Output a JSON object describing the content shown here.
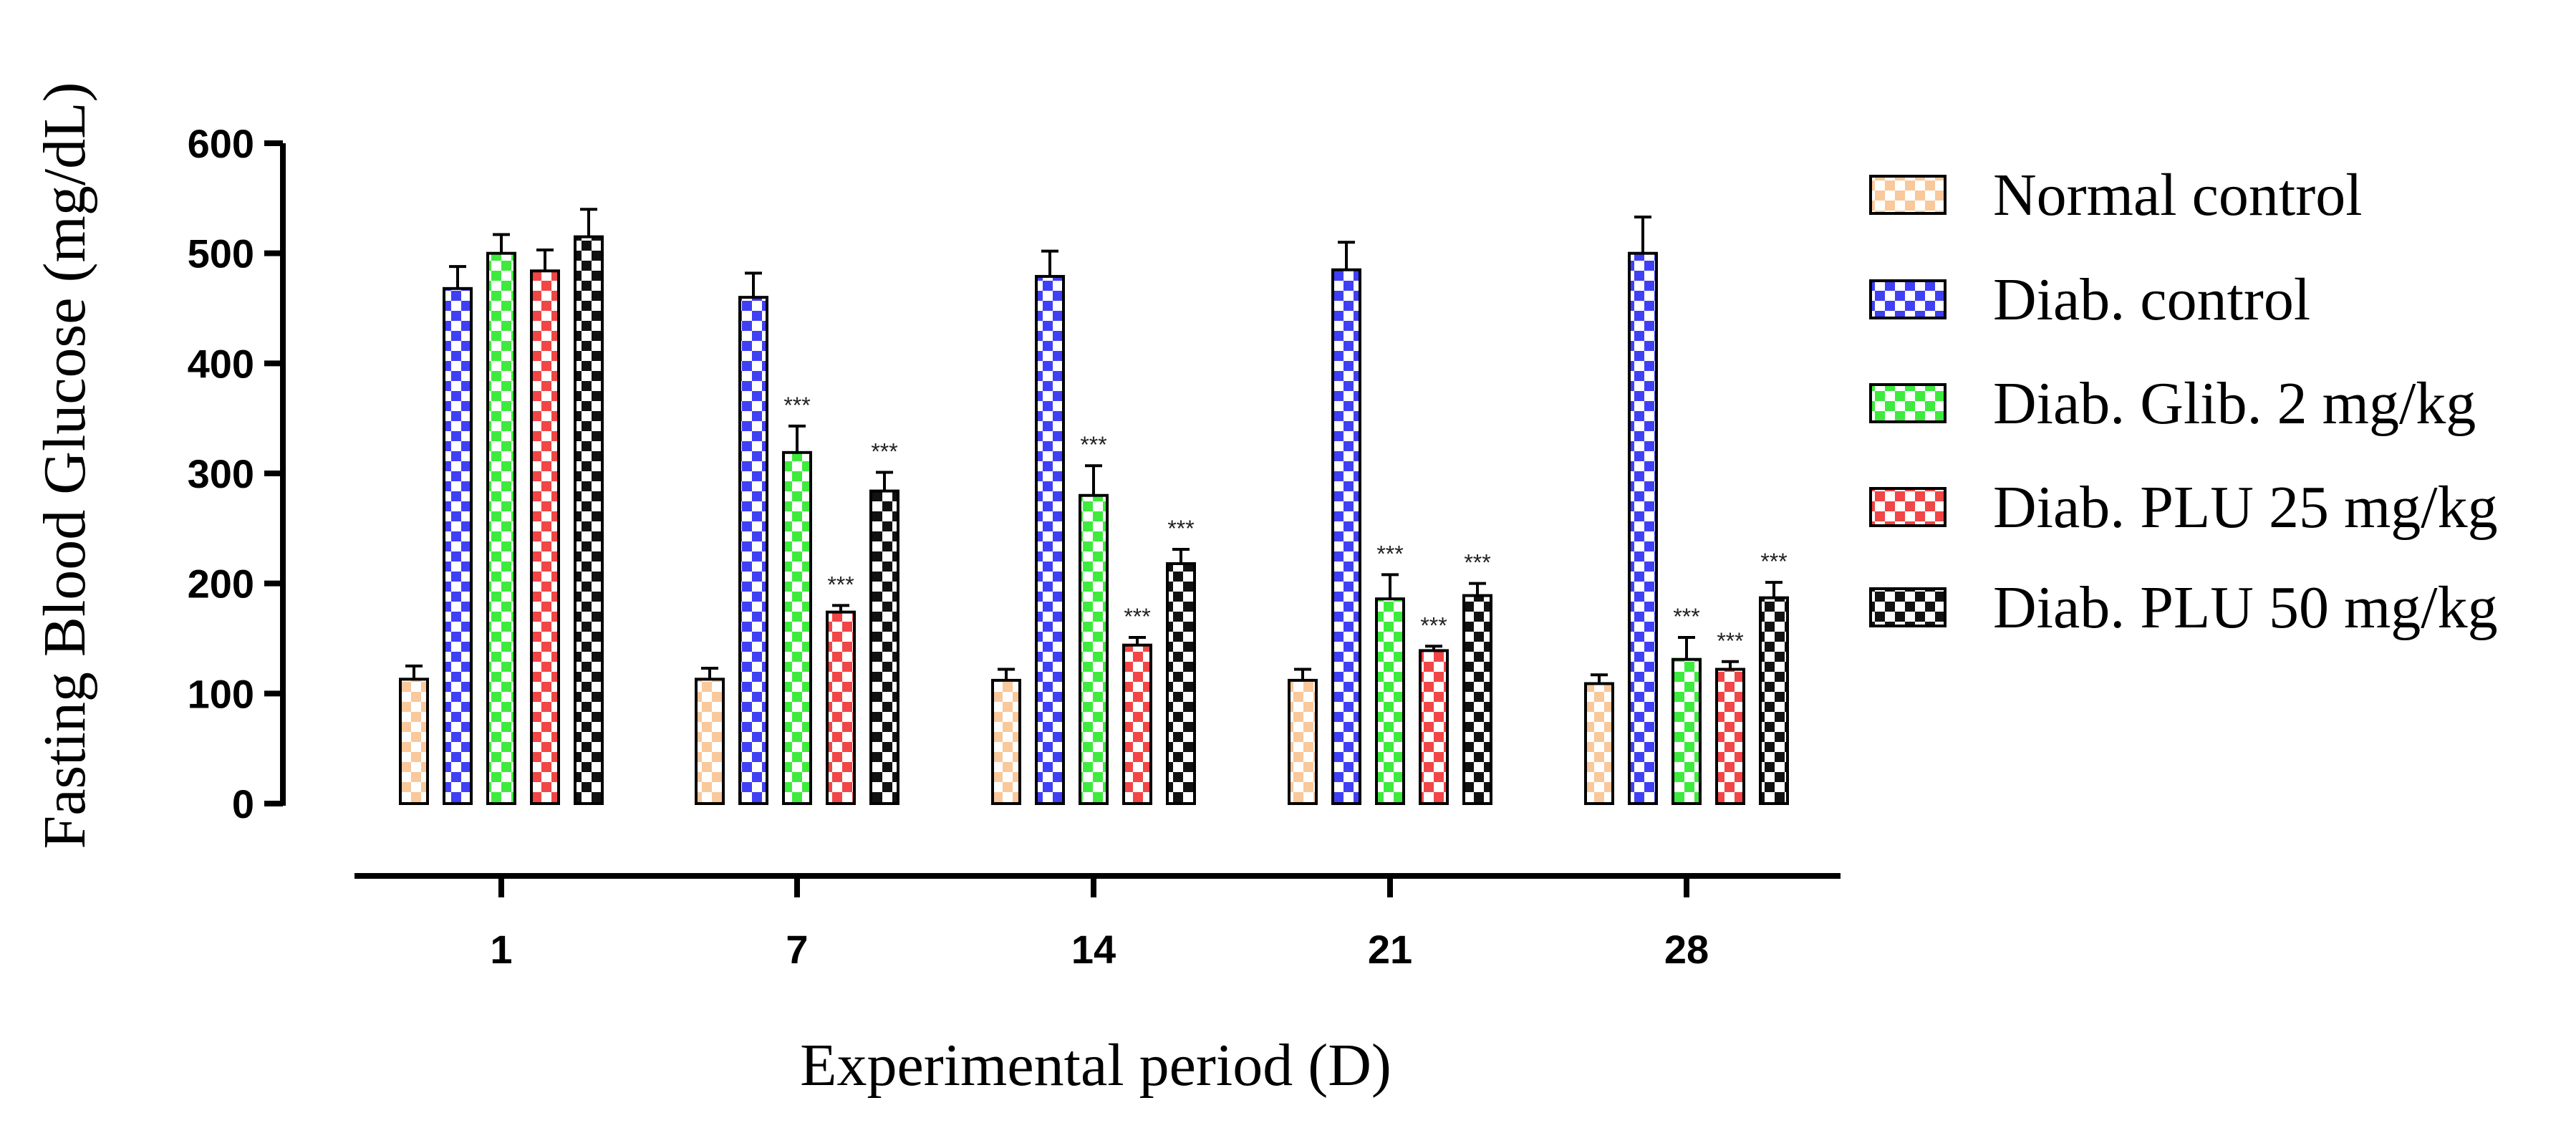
{
  "chart_data": {
    "type": "bar",
    "title": "",
    "xlabel": "Experimental period (D)",
    "ylabel": "Fasting Blood Glucose (mg/dL)",
    "ylim": [
      0,
      600
    ],
    "yticks": [
      "0",
      "100",
      "200",
      "300",
      "400",
      "500",
      "600"
    ],
    "categories": [
      "1",
      "7",
      "14",
      "21",
      "28"
    ],
    "legend_position": "right",
    "series": [
      {
        "name": "Normal control",
        "color": "#F9C89B",
        "values": [
          113,
          113,
          112,
          112,
          109
        ],
        "errors": [
          12,
          10,
          10,
          10,
          8
        ],
        "sig": [
          "",
          "",
          "",
          "",
          ""
        ]
      },
      {
        "name": "Diab. control",
        "color": "#3F3FF5",
        "values": [
          468,
          460,
          479,
          485,
          500
        ],
        "errors": [
          20,
          22,
          23,
          25,
          33
        ],
        "sig": [
          "",
          "",
          "",
          "",
          ""
        ]
      },
      {
        "name": "Diab. Glib. 2 mg/kg",
        "color": "#3DEB3D",
        "values": [
          500,
          319,
          280,
          186,
          131
        ],
        "errors": [
          17,
          24,
          27,
          22,
          20
        ],
        "sig": [
          "",
          "***",
          "***",
          "***",
          "***"
        ]
      },
      {
        "name": "Diab. PLU 25 mg/kg",
        "color": "#F24545",
        "values": [
          484,
          174,
          144,
          139,
          122
        ],
        "errors": [
          19,
          6,
          7,
          4,
          7
        ],
        "sig": [
          "",
          "***",
          "***",
          "***",
          "***"
        ]
      },
      {
        "name": "Diab. PLU 50 mg/kg",
        "color": "#111111",
        "values": [
          515,
          284,
          218,
          189,
          187
        ],
        "errors": [
          25,
          17,
          13,
          11,
          14
        ],
        "sig": [
          "",
          "***",
          "***",
          "***",
          "***"
        ]
      }
    ]
  }
}
